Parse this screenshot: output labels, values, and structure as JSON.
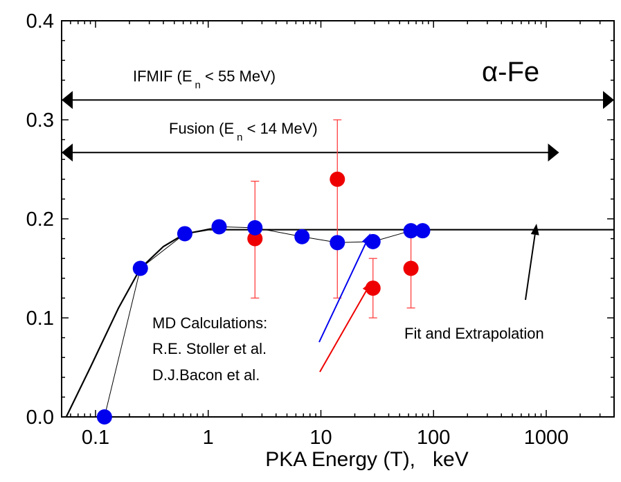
{
  "chart_data": {
    "type": "scatter",
    "xlabel": "PKA Energy (T),   keV",
    "ylabel": "",
    "x_scale": "log",
    "xlim": [
      0.05,
      4000
    ],
    "ylim": [
      0.0,
      0.4
    ],
    "x_ticks": [
      0.1,
      1,
      10,
      100,
      1000
    ],
    "x_tick_labels": [
      "0.1",
      "1",
      "10",
      "100",
      "1000"
    ],
    "y_ticks": [
      0.0,
      0.1,
      0.2,
      0.3,
      0.4
    ],
    "y_tick_labels": [
      "0.0",
      "0.1",
      "0.2",
      "0.3",
      "0.4"
    ],
    "material_label_greek": "α",
    "material_label": "-Fe",
    "series": [
      {
        "name": "R.E. Stoller et al.",
        "color": "#0000ee",
        "points": [
          {
            "x": 0.12,
            "y": 0.0
          },
          {
            "x": 0.25,
            "y": 0.15
          },
          {
            "x": 0.62,
            "y": 0.185
          },
          {
            "x": 1.25,
            "y": 0.192
          },
          {
            "x": 2.6,
            "y": 0.191
          },
          {
            "x": 6.8,
            "y": 0.182
          },
          {
            "x": 14,
            "y": 0.176
          },
          {
            "x": 29,
            "y": 0.177
          },
          {
            "x": 63,
            "y": 0.188
          },
          {
            "x": 80,
            "y": 0.188
          }
        ]
      },
      {
        "name": "D.J.Bacon et al.",
        "color": "#ee0000",
        "error_color": "#ff4040",
        "points": [
          {
            "x": 2.6,
            "y": 0.18,
            "ylow": 0.12,
            "yhigh": 0.238
          },
          {
            "x": 14,
            "y": 0.24,
            "ylow": 0.12,
            "yhigh": 0.3
          },
          {
            "x": 29,
            "y": 0.13,
            "ylow": 0.1,
            "yhigh": 0.16
          },
          {
            "x": 63,
            "y": 0.15,
            "ylow": 0.11,
            "yhigh": 0.19
          }
        ]
      }
    ],
    "fit_curve": [
      {
        "x": 0.055,
        "y": 0.0
      },
      {
        "x": 0.09,
        "y": 0.05
      },
      {
        "x": 0.16,
        "y": 0.11
      },
      {
        "x": 0.25,
        "y": 0.15
      },
      {
        "x": 0.4,
        "y": 0.172
      },
      {
        "x": 0.62,
        "y": 0.185
      },
      {
        "x": 1.0,
        "y": 0.189
      },
      {
        "x": 4000,
        "y": 0.189
      }
    ],
    "ranges": [
      {
        "label_main": "IFMIF (E",
        "label_sub": "n",
        "label_rest": " < 55 MeV)",
        "xmin": 0.05,
        "xmax": 4000,
        "y": 0.32
      },
      {
        "label_main": "Fusion (E",
        "label_sub": "n",
        "label_rest": " < 14 MeV)",
        "xmin": 0.05,
        "xmax": 1300,
        "y": 0.267
      }
    ],
    "annotations": {
      "md_title": "MD Calculations:",
      "stoller": "R.E. Stoller et al.",
      "bacon": "D.J.Bacon et al.",
      "fit_label": "Fit and Extrapolation"
    }
  }
}
